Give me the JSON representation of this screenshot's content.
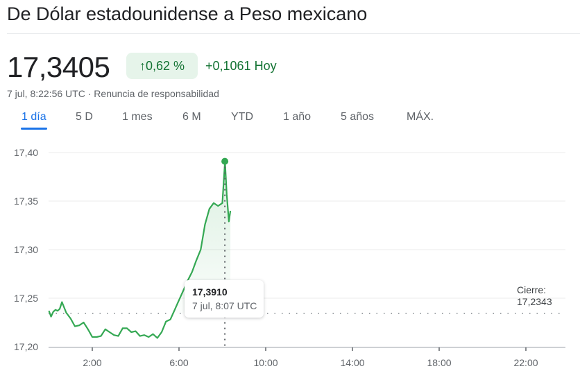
{
  "header": {
    "title": "De Dólar estadounidense a Peso mexicano"
  },
  "quote": {
    "price": "17,3405",
    "change_pct": "0,62 %",
    "change_arrow": "arrow-up-icon",
    "change_abs": "+0,1061 Hoy",
    "timestamp": "7 jul, 8:22:56 UTC",
    "separator": "·",
    "disclaimer": "Renuncia de responsabilidad",
    "color_positive": "#137333",
    "badge_bg": "#e6f4ea"
  },
  "tabs": [
    {
      "label": "1 día",
      "active": true
    },
    {
      "label": "5 D",
      "active": false
    },
    {
      "label": "1 mes",
      "active": false
    },
    {
      "label": "6 M",
      "active": false
    },
    {
      "label": "YTD",
      "active": false
    },
    {
      "label": "1 año",
      "active": false
    },
    {
      "label": "5 años",
      "active": false
    },
    {
      "label": "MÁX.",
      "active": false
    }
  ],
  "tooltip": {
    "value": "17,3910",
    "time": "7 jul, 8:07 UTC"
  },
  "previous_close": {
    "label": "Cierre:",
    "value": "17,2343"
  },
  "chart_data": {
    "type": "line",
    "title": "De Dólar estadounidense a Peso mexicano",
    "xlabel": "",
    "ylabel": "",
    "y_tick_labels": [
      "17,40",
      "17,35",
      "17,30",
      "17,25",
      "17,20"
    ],
    "x_tick_labels": [
      "2:00",
      "6:00",
      "10:00",
      "14:00",
      "18:00",
      "22:00"
    ],
    "ylim": [
      17.2,
      17.4
    ],
    "xlim_hours": [
      0,
      24
    ],
    "grid": "horizontal",
    "line_color": "#34a853",
    "previous_close": 17.2343,
    "highlight_point": {
      "time": "8:07",
      "value": 17.391
    },
    "x": [
      0.0,
      0.1,
      0.2,
      0.3,
      0.4,
      0.5,
      0.6,
      0.8,
      1.0,
      1.2,
      1.4,
      1.6,
      1.8,
      2.0,
      2.2,
      2.4,
      2.6,
      2.8,
      3.0,
      3.2,
      3.4,
      3.6,
      3.8,
      4.0,
      4.2,
      4.4,
      4.6,
      4.8,
      5.0,
      5.2,
      5.4,
      5.6,
      5.8,
      6.0,
      6.2,
      6.4,
      6.6,
      6.8,
      7.0,
      7.2,
      7.4,
      7.6,
      7.8,
      8.0,
      8.12,
      8.2,
      8.3,
      8.37
    ],
    "values": [
      17.237,
      17.231,
      17.236,
      17.238,
      17.237,
      17.239,
      17.246,
      17.235,
      17.229,
      17.221,
      17.222,
      17.225,
      17.218,
      17.21,
      17.21,
      17.211,
      17.218,
      17.215,
      17.212,
      17.211,
      17.219,
      17.219,
      17.215,
      17.216,
      17.211,
      17.212,
      17.21,
      17.213,
      17.209,
      17.215,
      17.226,
      17.228,
      17.238,
      17.248,
      17.258,
      17.268,
      17.277,
      17.289,
      17.3,
      17.326,
      17.342,
      17.348,
      17.345,
      17.348,
      17.391,
      17.357,
      17.329,
      17.34
    ]
  }
}
